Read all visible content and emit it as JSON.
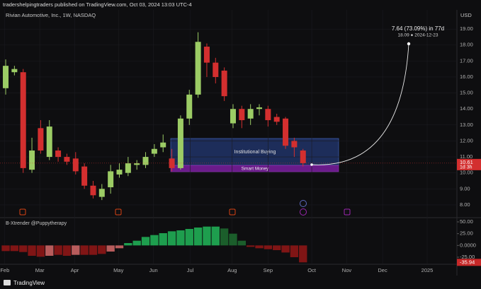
{
  "header": "tradershelpingtraders published on TradingView.com, Oct 03, 2024 13:03 UTC-4",
  "footer": "TradingView",
  "chart_data": [
    {
      "type": "candlestick",
      "title": "Rivian Automotive, Inc., 1W, NASDAQ",
      "y_label": "USD",
      "up_color": "#9ccc65",
      "down_color": "#d32f2f",
      "open": [
        15.3,
        16.3,
        16.3,
        10.2,
        12.8,
        11.0,
        11.4,
        11.0,
        10.9,
        10.4,
        9.2,
        8.5,
        9.1,
        9.9,
        10.0,
        10.5,
        10.5,
        11.2,
        11.6,
        10.9,
        10.3,
        13.4,
        14.9,
        17.9,
        16.9,
        16.4,
        13.1,
        14.0,
        13.4,
        14.0,
        14.0,
        13.5,
        13.4,
        12.0,
        11.4
      ],
      "high": [
        17.1,
        16.7,
        16.5,
        12.2,
        13.3,
        13.3,
        11.6,
        11.2,
        11.3,
        10.6,
        9.5,
        9.3,
        10.5,
        10.6,
        11.0,
        10.8,
        11.3,
        11.8,
        12.4,
        11.5,
        13.6,
        15.2,
        18.8,
        18.1,
        17.2,
        16.6,
        14.3,
        14.2,
        14.3,
        14.3,
        14.2,
        13.7,
        13.5,
        12.2,
        11.5
      ],
      "low": [
        14.9,
        16.1,
        10.0,
        10.0,
        11.2,
        10.8,
        10.7,
        10.5,
        9.9,
        9.0,
        8.4,
        8.3,
        8.7,
        9.7,
        9.8,
        10.2,
        10.3,
        11.0,
        11.3,
        10.1,
        10.2,
        13.0,
        14.7,
        16.0,
        15.6,
        14.5,
        12.8,
        12.8,
        13.0,
        13.6,
        12.9,
        13.0,
        11.5,
        11.0,
        10.4
      ],
      "close": [
        16.7,
        16.5,
        10.3,
        11.4,
        11.4,
        12.9,
        11.0,
        10.7,
        10.1,
        9.2,
        8.6,
        9.0,
        10.1,
        10.2,
        10.6,
        10.6,
        11.0,
        11.5,
        11.9,
        10.3,
        13.4,
        14.9,
        18.2,
        16.9,
        16.0,
        14.8,
        14.0,
        13.3,
        14.0,
        14.1,
        13.3,
        13.2,
        11.7,
        11.6,
        10.61
      ],
      "last_badge_sub": "1d 3h",
      "zones": [
        {
          "label": "Institutional Buying"
        },
        {
          "label": "Smart Money"
        }
      ],
      "projection": {
        "label": "7.64 (73.09%) in 77d",
        "detail": "18.09 ● 2024-12-23"
      },
      "ylim": [
        7.2,
        20.2
      ],
      "yticks": [
        {
          "value": 19,
          "label": "19.00"
        },
        {
          "value": 18,
          "label": "18.00"
        },
        {
          "value": 17,
          "label": "17.00"
        },
        {
          "value": 16,
          "label": "16.00"
        },
        {
          "value": 15,
          "label": "15.00"
        },
        {
          "value": 14,
          "label": "14.00"
        },
        {
          "value": 13,
          "label": "13.00"
        },
        {
          "value": 12,
          "label": "12.00"
        },
        {
          "value": 11,
          "label": "11.00"
        },
        {
          "value": 10,
          "label": "10.00"
        },
        {
          "value": 9,
          "label": "9.00"
        },
        {
          "value": 8,
          "label": "8.00"
        }
      ],
      "xlim": [
        -0.65,
        51.6
      ],
      "xticks": [
        {
          "value": -0.1,
          "label": "Feb"
        },
        {
          "value": 3.9,
          "label": "Mar"
        },
        {
          "value": 7.9,
          "label": "Apr"
        },
        {
          "value": 12.9,
          "label": "May"
        },
        {
          "value": 16.9,
          "label": "Jun"
        },
        {
          "value": 21.1,
          "label": "Jul"
        },
        {
          "value": 25.9,
          "label": "Aug"
        },
        {
          "value": 30.0,
          "label": "Sep"
        },
        {
          "value": 35.0,
          "label": "Oct"
        },
        {
          "value": 39.0,
          "label": "Nov"
        },
        {
          "value": 43.1,
          "label": "Dec"
        },
        {
          "value": 48.2,
          "label": "2025"
        }
      ]
    },
    {
      "type": "bar",
      "title": "B-Xtrender @Puppytherapy",
      "values": [
        -12,
        -12,
        -14,
        -22,
        -24,
        -22,
        -20,
        -22,
        -20,
        -20,
        -20,
        -18,
        -13,
        -6,
        5,
        10,
        18,
        22,
        26,
        30,
        32,
        35,
        38,
        40,
        40,
        36,
        25,
        10,
        -3,
        -6,
        -8,
        -10,
        -15,
        -25,
        -35.94
      ],
      "colors": [
        "#801515",
        "#801515",
        "#801515",
        "#801515",
        "#801515",
        "#b85c5c",
        "#801515",
        "#801515",
        "#b85c5c",
        "#801515",
        "#801515",
        "#801515",
        "#b85c5c",
        "#b85c5c",
        "#1e9e4e",
        "#1e9e4e",
        "#1e9e4e",
        "#1e9e4e",
        "#1e9e4e",
        "#1e9e4e",
        "#1e9e4e",
        "#1e9e4e",
        "#1e9e4e",
        "#1e9e4e",
        "#1e9e4e",
        "#1b5e2b",
        "#1b5e2b",
        "#1b5e2b",
        "#801515",
        "#801515",
        "#801515",
        "#801515",
        "#801515",
        "#801515",
        "#801515"
      ],
      "ylim": [
        -38.5,
        59
      ],
      "yticks": [
        {
          "value": 50,
          "label": "50.00"
        },
        {
          "value": 25,
          "label": "25.00"
        },
        {
          "value": 0,
          "label": "0.0000"
        },
        {
          "value": -25,
          "label": "-25.00"
        }
      ],
      "xlim": [
        -0.65,
        51.6
      ]
    }
  ]
}
